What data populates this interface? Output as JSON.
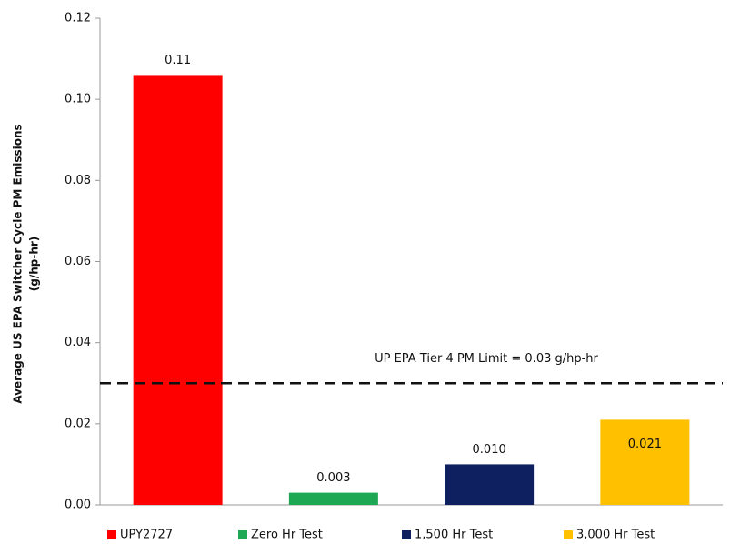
{
  "chart_data": {
    "type": "bar",
    "y_label": [
      "Average US EPA Switcher Cycle PM Emissions",
      "(g/hp-hr)"
    ],
    "categories": [
      "UPY2727",
      "Zero Hr Test",
      "1,500 Hr Test",
      "3,000 Hr Test"
    ],
    "values": [
      0.106,
      0.003,
      0.01,
      0.021
    ],
    "value_labels": [
      "0.11",
      "0.003",
      "0.010",
      "0.021"
    ],
    "colors": [
      "#ff0000",
      "#1fa854",
      "#0f2060",
      "#ffc000"
    ],
    "ylim": [
      0,
      0.12
    ],
    "yticks": [
      {
        "value": 0,
        "label": "0.00"
      },
      0.02,
      0.04,
      0.06,
      0.08,
      {
        "value": 0.1,
        "label": "0.10"
      },
      0.12
    ],
    "grid": false,
    "legend": "bottom",
    "reference_line": {
      "value": 0.03,
      "label": "UP EPA Tier 4 PM Limit = 0.03 g/hp-hr"
    }
  }
}
